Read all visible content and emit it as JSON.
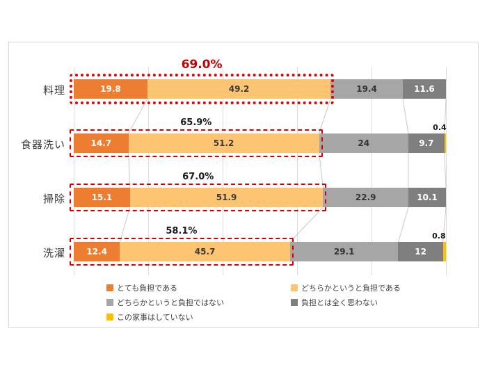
{
  "chart_data": {
    "type": "bar",
    "stacked": true,
    "orientation": "horizontal",
    "title": "",
    "categories": [
      "料理",
      "食器洗い",
      "掃除",
      "洗濯"
    ],
    "series": [
      {
        "name": "とても負担である",
        "color": "#ED7D31",
        "label_color": "#FFFFFF",
        "values": [
          19.8,
          14.7,
          15.1,
          12.4
        ],
        "labels": [
          "19.8",
          "14.7",
          "15.1",
          "12.4"
        ],
        "label_outside": false
      },
      {
        "name": "どちらかというと負担である",
        "color": "#FDC572",
        "label_color": "#3A3A3A",
        "values": [
          49.2,
          51.2,
          51.9,
          45.7
        ],
        "labels": [
          "49.2",
          "51.2",
          "51.9",
          "45.7"
        ],
        "label_outside": false
      },
      {
        "name": "どちらかというと負担ではない",
        "color": "#A6A6A6",
        "label_color": "#333333",
        "values": [
          19.4,
          24,
          22.9,
          29.1
        ],
        "labels": [
          "19.4",
          "24",
          "22.9",
          "29.1"
        ],
        "label_outside": false
      },
      {
        "name": "負担とは全く思わない",
        "color": "#7F7F7F",
        "label_color": "#FFFFFF",
        "values": [
          11.6,
          9.7,
          10.1,
          12
        ],
        "labels": [
          "11.6",
          "9.7",
          "10.1",
          "12"
        ],
        "label_outside": false
      },
      {
        "name": "この家事はしていない",
        "color": "#FFC000",
        "label_color": "#1A1A1A",
        "values": [
          0,
          0.4,
          0,
          0.8
        ],
        "labels": [
          "",
          "0.4",
          "",
          "0.8"
        ],
        "label_outside": true
      }
    ],
    "xlim": [
      0,
      100
    ],
    "gridlines": [
      0,
      20,
      40,
      60,
      80,
      100
    ],
    "highlights": [
      {
        "category": "料理",
        "label": "69.0%",
        "span": 69.0,
        "emphasized": true
      },
      {
        "category": "食器洗い",
        "label": "65.9%",
        "span": 65.9,
        "emphasized": false
      },
      {
        "category": "掃除",
        "label": "67.0%",
        "span": 67.0,
        "emphasized": false
      },
      {
        "category": "洗濯",
        "label": "58.1%",
        "span": 58.1,
        "emphasized": false
      }
    ],
    "colors": {
      "highlight_box": "#E00000",
      "highlight_label_big": "#C00000",
      "highlight_label": "#1A1A1A",
      "gridline": "#DCDCDC",
      "connector": "#C9C9C9",
      "card_border": "#D9D9D9"
    }
  },
  "legend": {
    "items": [
      {
        "label": "とても負担である",
        "color": "#ED7D31"
      },
      {
        "label": "どちらかというと負担である",
        "color": "#FDC572"
      },
      {
        "label": "どちらかというと負担ではない",
        "color": "#A6A6A6"
      },
      {
        "label": "負担とは全く思わない",
        "color": "#7F7F7F"
      },
      {
        "label": "この家事はしていない",
        "color": "#FFC000"
      }
    ]
  }
}
